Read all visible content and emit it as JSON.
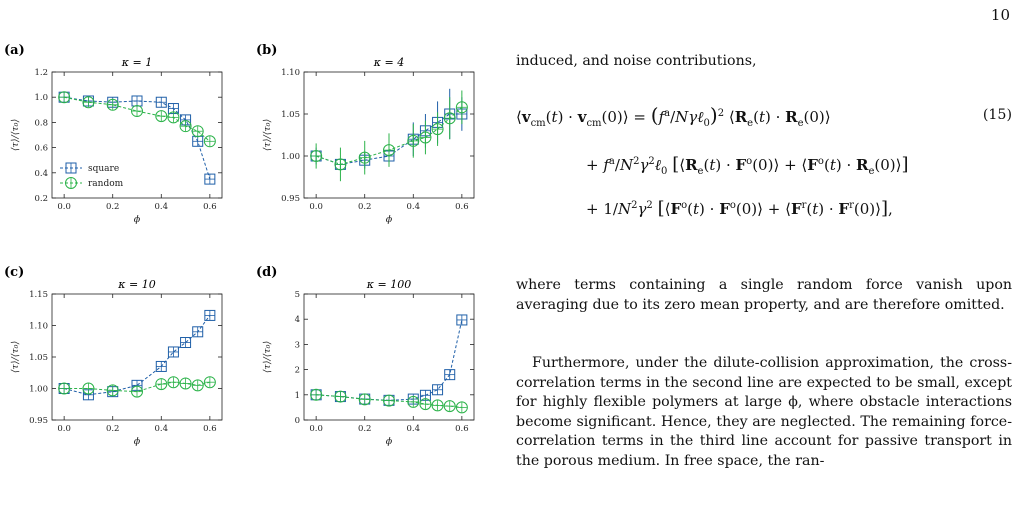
{
  "page_number": "10",
  "figure": {
    "legend": [
      "square",
      "random"
    ],
    "colors": {
      "square": "#1f5fa8",
      "random": "#2cb34a"
    },
    "x_label": "ϕ",
    "y_label": "⟨τ⟩/⟨τ₀⟩"
  },
  "chart_data": [
    {
      "type": "line",
      "panel": "(a)",
      "title": "κ = 1",
      "xlabel": "ϕ",
      "ylabel": "⟨τ⟩/⟨τ₀⟩",
      "xlim": [
        -0.05,
        0.65
      ],
      "ylim": [
        0.2,
        1.2
      ],
      "xticks": [
        "0.0",
        "0.2",
        "0.4",
        "0.6"
      ],
      "yticks": [
        "0.2",
        "0.4",
        "0.6",
        "0.8",
        "1.0",
        "1.2"
      ],
      "legend_position": "lower-left",
      "series": [
        {
          "name": "square",
          "x": [
            0.0,
            0.1,
            0.2,
            0.3,
            0.4,
            0.45,
            0.5,
            0.55,
            0.6
          ],
          "y": [
            1.0,
            0.97,
            0.96,
            0.97,
            0.96,
            0.91,
            0.82,
            0.65,
            0.35
          ]
        },
        {
          "name": "random",
          "x": [
            0.0,
            0.1,
            0.2,
            0.3,
            0.4,
            0.45,
            0.5,
            0.55,
            0.6
          ],
          "y": [
            1.0,
            0.96,
            0.94,
            0.89,
            0.85,
            0.84,
            0.77,
            0.73,
            0.65
          ]
        }
      ]
    },
    {
      "type": "line",
      "panel": "(b)",
      "title": "κ = 4",
      "xlabel": "ϕ",
      "ylabel": "⟨τ⟩/⟨τ₀⟩",
      "xlim": [
        -0.05,
        0.65
      ],
      "ylim": [
        0.95,
        1.1
      ],
      "xticks": [
        "0.0",
        "0.2",
        "0.4",
        "0.6"
      ],
      "yticks": [
        "0.95",
        "1.00",
        "1.05",
        "1.10"
      ],
      "series": [
        {
          "name": "square",
          "x": [
            0.0,
            0.1,
            0.2,
            0.3,
            0.4,
            0.45,
            0.5,
            0.55,
            0.6
          ],
          "y": [
            1.0,
            0.99,
            0.995,
            1.0,
            1.02,
            1.03,
            1.04,
            1.05,
            1.05
          ],
          "err": [
            0.01,
            0.005,
            0.01,
            0.01,
            0.02,
            0.02,
            0.025,
            0.03,
            0.02
          ]
        },
        {
          "name": "random",
          "x": [
            0.0,
            0.1,
            0.2,
            0.3,
            0.4,
            0.45,
            0.5,
            0.55,
            0.6
          ],
          "y": [
            1.0,
            0.99,
            0.998,
            1.007,
            1.018,
            1.022,
            1.032,
            1.045,
            1.058
          ],
          "err": [
            0.015,
            0.02,
            0.02,
            0.02,
            0.02,
            0.02,
            0.02,
            0.025,
            0.02
          ]
        }
      ]
    },
    {
      "type": "line",
      "panel": "(c)",
      "title": "κ = 10",
      "xlabel": "ϕ",
      "ylabel": "⟨τ⟩/⟨τ₀⟩",
      "xlim": [
        -0.05,
        0.65
      ],
      "ylim": [
        0.95,
        1.15
      ],
      "xticks": [
        "0.0",
        "0.2",
        "0.4",
        "0.6"
      ],
      "yticks": [
        "0.95",
        "1.00",
        "1.05",
        "1.10",
        "1.15"
      ],
      "series": [
        {
          "name": "square",
          "x": [
            0.0,
            0.1,
            0.2,
            0.3,
            0.4,
            0.45,
            0.5,
            0.55,
            0.6
          ],
          "y": [
            1.0,
            0.99,
            0.995,
            1.005,
            1.035,
            1.058,
            1.073,
            1.09,
            1.116
          ]
        },
        {
          "name": "random",
          "x": [
            0.0,
            0.1,
            0.2,
            0.3,
            0.4,
            0.45,
            0.5,
            0.55,
            0.6
          ],
          "y": [
            1.0,
            1.0,
            0.997,
            0.995,
            1.007,
            1.01,
            1.008,
            1.005,
            1.01
          ]
        }
      ]
    },
    {
      "type": "line",
      "panel": "(d)",
      "title": "κ = 100",
      "xlabel": "ϕ",
      "ylabel": "⟨τ⟩/⟨τ₀⟩",
      "xlim": [
        -0.05,
        0.65
      ],
      "ylim": [
        0,
        5
      ],
      "xticks": [
        "0.0",
        "0.2",
        "0.4",
        "0.6"
      ],
      "yticks": [
        "0",
        "1",
        "2",
        "3",
        "4",
        "5"
      ],
      "series": [
        {
          "name": "square",
          "x": [
            0.0,
            0.1,
            0.2,
            0.3,
            0.4,
            0.45,
            0.5,
            0.55,
            0.6
          ],
          "y": [
            1.0,
            0.93,
            0.83,
            0.78,
            0.83,
            0.98,
            1.2,
            1.8,
            3.97
          ]
        },
        {
          "name": "random",
          "x": [
            0.0,
            0.1,
            0.2,
            0.3,
            0.4,
            0.45,
            0.5,
            0.55,
            0.6
          ],
          "y": [
            1.0,
            0.93,
            0.82,
            0.77,
            0.72,
            0.63,
            0.58,
            0.55,
            0.5
          ]
        }
      ]
    }
  ],
  "text": {
    "intro": "induced, and noise contributions,",
    "eq_number": "(15)",
    "para2": "where terms containing a single random force vanish upon averaging due to its zero mean property, and are therefore omitted.",
    "para3": "Furthermore, under the dilute-collision approximation, the cross-correlation terms in the second line are expected to be small, except for highly flexible polymers at large ϕ, where obstacle interactions become significant. Hence, they are neglected. The remaining force-correlation terms in the third line account for passive transport in the porous medium. In free space, the ran-"
  }
}
